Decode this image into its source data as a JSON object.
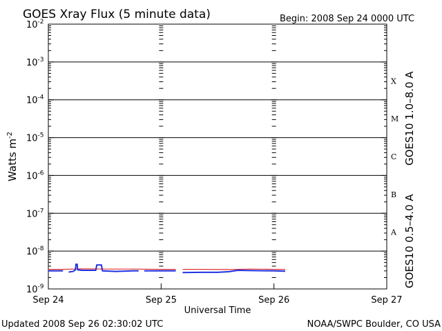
{
  "chart_data": {
    "type": "line",
    "title": "GOES Xray Flux (5 minute data)",
    "begin_label": "Begin:  2008 Sep 24 0000 UTC",
    "xlabel": "Universal Time",
    "ylabel": "Watts m",
    "ylabel_exponent": "-2",
    "y_scale": "log",
    "ylim": [
      1e-09,
      0.01
    ],
    "y_ticks": [
      {
        "base": "10",
        "exp": "-2",
        "value": 0.01
      },
      {
        "base": "10",
        "exp": "-3",
        "value": 0.001
      },
      {
        "base": "10",
        "exp": "-4",
        "value": 0.0001
      },
      {
        "base": "10",
        "exp": "-5",
        "value": 1e-05
      },
      {
        "base": "10",
        "exp": "-6",
        "value": 1e-06
      },
      {
        "base": "10",
        "exp": "-7",
        "value": 1e-07
      },
      {
        "base": "10",
        "exp": "-8",
        "value": 1e-08
      },
      {
        "base": "10",
        "exp": "-9",
        "value": 1e-09
      }
    ],
    "x_range_days": [
      0,
      3
    ],
    "x_ticks": [
      {
        "label": "Sep 24",
        "day": 0
      },
      {
        "label": "Sep 25",
        "day": 1
      },
      {
        "label": "Sep 26",
        "day": 2
      },
      {
        "label": "Sep 27",
        "day": 3
      }
    ],
    "flare_classes": [
      {
        "label": "X",
        "value": 0.000316
      },
      {
        "label": "M",
        "value": 3.16e-05
      },
      {
        "label": "C",
        "value": 3.16e-06
      },
      {
        "label": "B",
        "value": 3.16e-07
      },
      {
        "label": "A",
        "value": 3.16e-08
      }
    ],
    "grid_horizontal": true,
    "series": [
      {
        "name": "GOES10 1.0–8.0 A",
        "color": "#e03030",
        "segments": [
          [
            [
              0.0,
              3.3e-09
            ],
            [
              0.13,
              3.3e-09
            ],
            [
              0.3,
              3.4e-09
            ],
            [
              0.5,
              3.35e-09
            ],
            [
              0.75,
              3.35e-09
            ],
            [
              1.0,
              3.3e-09
            ],
            [
              1.13,
              3.3e-09
            ]
          ],
          [
            [
              1.19,
              3.3e-09
            ],
            [
              1.4,
              3.3e-09
            ],
            [
              1.6,
              3.25e-09
            ],
            [
              1.8,
              3.35e-09
            ],
            [
              2.0,
              3.3e-09
            ],
            [
              2.1,
              3.3e-09
            ]
          ]
        ]
      },
      {
        "name": "GOES10 0.5–4.0 A",
        "color": "#2030e0",
        "segments": [
          [
            [
              0.0,
              3e-09
            ],
            [
              0.13,
              3e-09
            ]
          ],
          [
            [
              0.18,
              2.8e-09
            ],
            [
              0.22,
              2.9e-09
            ],
            [
              0.24,
              3.2e-09
            ],
            [
              0.245,
              4.5e-09
            ],
            [
              0.255,
              4.5e-09
            ],
            [
              0.26,
              3.2e-09
            ],
            [
              0.3,
              3.1e-09
            ],
            [
              0.42,
              3.1e-09
            ],
            [
              0.43,
              4.3e-09
            ],
            [
              0.47,
              4.3e-09
            ],
            [
              0.48,
              3e-09
            ],
            [
              0.6,
              2.9e-09
            ],
            [
              0.75,
              3e-09
            ],
            [
              0.8,
              3e-09
            ]
          ],
          [
            [
              0.85,
              3e-09
            ],
            [
              1.13,
              3e-09
            ]
          ],
          [
            [
              1.19,
              2.7e-09
            ],
            [
              1.35,
              2.75e-09
            ],
            [
              1.5,
              2.75e-09
            ],
            [
              1.6,
              2.85e-09
            ],
            [
              1.68,
              3.1e-09
            ],
            [
              1.8,
              3.05e-09
            ],
            [
              2.0,
              3e-09
            ],
            [
              2.1,
              2.95e-09
            ]
          ]
        ]
      }
    ],
    "legend_placement": "right, rotated vertical"
  },
  "footer": {
    "updated": "Updated 2008 Sep 26 02:30:02 UTC",
    "credit": "NOAA/SWPC Boulder, CO USA"
  }
}
